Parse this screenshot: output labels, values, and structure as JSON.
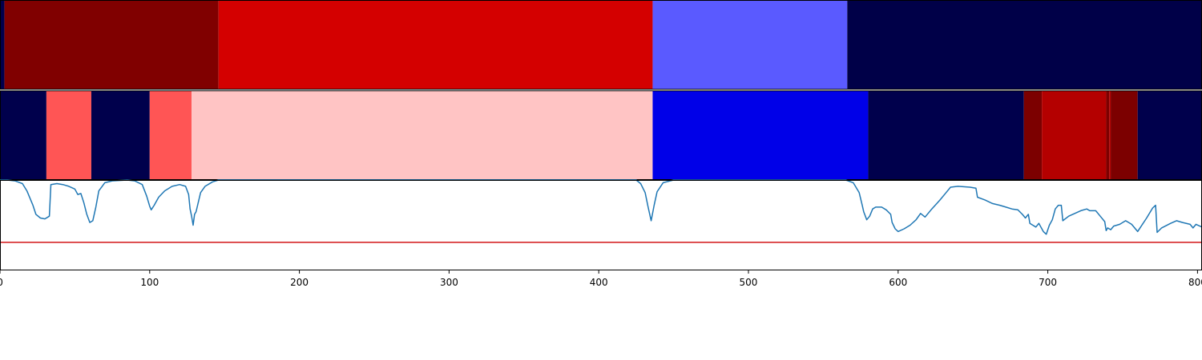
{
  "chart_data": [
    {
      "type": "heatmap",
      "panel": "top-segments",
      "x_range": [
        0,
        803
      ],
      "segments": [
        {
          "start": 0,
          "end": 3,
          "color": "#00004c"
        },
        {
          "start": 3,
          "end": 146,
          "color": "#800000"
        },
        {
          "start": 146,
          "end": 436,
          "color": "#d40000"
        },
        {
          "start": 436,
          "end": 566,
          "color": "#5a5aff"
        },
        {
          "start": 566,
          "end": 803,
          "color": "#000048"
        }
      ]
    },
    {
      "type": "heatmap",
      "panel": "middle-segments",
      "x_range": [
        0,
        803
      ],
      "segments": [
        {
          "start": 0,
          "end": 31,
          "color": "#00004c"
        },
        {
          "start": 31,
          "end": 61,
          "color": "#ff5555"
        },
        {
          "start": 61,
          "end": 100,
          "color": "#00004c"
        },
        {
          "start": 100,
          "end": 128,
          "color": "#ff5555"
        },
        {
          "start": 128,
          "end": 436,
          "color": "#ffc4c4"
        },
        {
          "start": 436,
          "end": 580,
          "color": "#0000e8"
        },
        {
          "start": 580,
          "end": 684,
          "color": "#00004c"
        },
        {
          "start": 684,
          "end": 696,
          "color": "#7c0000"
        },
        {
          "start": 696,
          "end": 739,
          "color": "#b40000"
        },
        {
          "start": 739,
          "end": 741,
          "color": "#7c0000"
        },
        {
          "start": 741,
          "end": 742,
          "color": "#b40000"
        },
        {
          "start": 742,
          "end": 760,
          "color": "#7c0000"
        },
        {
          "start": 760,
          "end": 803,
          "color": "#00004c"
        }
      ]
    },
    {
      "type": "line",
      "panel": "bottom-line",
      "xlim": [
        0,
        803
      ],
      "ylim": [
        0,
        1
      ],
      "x_ticks": [
        0,
        100,
        200,
        300,
        400,
        500,
        600,
        700,
        800
      ],
      "tick_labels": [
        "0",
        "100",
        "200",
        "300",
        "400",
        "500",
        "600",
        "700",
        "800"
      ],
      "threshold": {
        "value": 0.31,
        "color": "#d62728"
      },
      "series": [
        {
          "color": "#1f77b4",
          "points": [
            [
              0,
              1.0
            ],
            [
              5,
              1.0
            ],
            [
              10,
              0.99
            ],
            [
              15,
              0.96
            ],
            [
              18,
              0.88
            ],
            [
              22,
              0.72
            ],
            [
              24,
              0.62
            ],
            [
              27,
              0.58
            ],
            [
              30,
              0.57
            ],
            [
              33,
              0.6
            ],
            [
              34,
              0.95
            ],
            [
              38,
              0.96
            ],
            [
              42,
              0.95
            ],
            [
              46,
              0.93
            ],
            [
              50,
              0.9
            ],
            [
              52,
              0.84
            ],
            [
              54,
              0.85
            ],
            [
              56,
              0.75
            ],
            [
              58,
              0.62
            ],
            [
              60,
              0.53
            ],
            [
              62,
              0.55
            ],
            [
              64,
              0.7
            ],
            [
              66,
              0.88
            ],
            [
              70,
              0.97
            ],
            [
              75,
              0.99
            ],
            [
              85,
              1.0
            ],
            [
              90,
              0.99
            ],
            [
              95,
              0.95
            ],
            [
              98,
              0.82
            ],
            [
              100,
              0.71
            ],
            [
              101,
              0.67
            ],
            [
              103,
              0.72
            ],
            [
              106,
              0.81
            ],
            [
              110,
              0.88
            ],
            [
              115,
              0.93
            ],
            [
              120,
              0.95
            ],
            [
              124,
              0.93
            ],
            [
              126,
              0.84
            ],
            [
              127,
              0.68
            ],
            [
              128,
              0.6
            ],
            [
              129,
              0.5
            ],
            [
              130,
              0.62
            ],
            [
              131,
              0.65
            ],
            [
              134,
              0.86
            ],
            [
              137,
              0.93
            ],
            [
              142,
              0.98
            ],
            [
              146,
              1.0
            ],
            [
              425,
              1.0
            ],
            [
              428,
              0.96
            ],
            [
              431,
              0.86
            ],
            [
              433,
              0.7
            ],
            [
              435,
              0.55
            ],
            [
              437,
              0.72
            ],
            [
              439,
              0.87
            ],
            [
              443,
              0.97
            ],
            [
              450,
              1.0
            ],
            [
              565,
              1.0
            ],
            [
              570,
              0.97
            ],
            [
              574,
              0.86
            ],
            [
              576,
              0.72
            ],
            [
              577,
              0.65
            ],
            [
              579,
              0.56
            ],
            [
              581,
              0.6
            ],
            [
              583,
              0.68
            ],
            [
              585,
              0.7
            ],
            [
              589,
              0.7
            ],
            [
              592,
              0.67
            ],
            [
              595,
              0.62
            ],
            [
              596,
              0.53
            ],
            [
              598,
              0.46
            ],
            [
              600,
              0.43
            ],
            [
              604,
              0.46
            ],
            [
              608,
              0.5
            ],
            [
              612,
              0.56
            ],
            [
              615,
              0.63
            ],
            [
              618,
              0.59
            ],
            [
              622,
              0.67
            ],
            [
              628,
              0.78
            ],
            [
              632,
              0.86
            ],
            [
              635,
              0.92
            ],
            [
              640,
              0.93
            ],
            [
              648,
              0.92
            ],
            [
              652,
              0.91
            ],
            [
              653,
              0.81
            ],
            [
              658,
              0.78
            ],
            [
              663,
              0.74
            ],
            [
              668,
              0.72
            ],
            [
              672,
              0.7
            ],
            [
              676,
              0.68
            ],
            [
              680,
              0.67
            ],
            [
              683,
              0.62
            ],
            [
              685,
              0.58
            ],
            [
              687,
              0.62
            ],
            [
              688,
              0.52
            ],
            [
              690,
              0.5
            ],
            [
              692,
              0.48
            ],
            [
              694,
              0.52
            ],
            [
              697,
              0.43
            ],
            [
              699,
              0.4
            ],
            [
              701,
              0.5
            ],
            [
              703,
              0.56
            ],
            [
              705,
              0.68
            ],
            [
              707,
              0.72
            ],
            [
              709,
              0.72
            ],
            [
              710,
              0.55
            ],
            [
              714,
              0.6
            ],
            [
              718,
              0.63
            ],
            [
              722,
              0.66
            ],
            [
              726,
              0.68
            ],
            [
              728,
              0.66
            ],
            [
              732,
              0.66
            ],
            [
              735,
              0.6
            ],
            [
              738,
              0.54
            ],
            [
              739,
              0.44
            ],
            [
              740,
              0.47
            ],
            [
              742,
              0.45
            ],
            [
              744,
              0.49
            ],
            [
              748,
              0.51
            ],
            [
              752,
              0.55
            ],
            [
              756,
              0.51
            ],
            [
              760,
              0.43
            ],
            [
              762,
              0.48
            ],
            [
              766,
              0.58
            ],
            [
              770,
              0.69
            ],
            [
              772,
              0.72
            ],
            [
              773,
              0.42
            ],
            [
              776,
              0.47
            ],
            [
              782,
              0.52
            ],
            [
              786,
              0.55
            ],
            [
              790,
              0.53
            ],
            [
              795,
              0.51
            ],
            [
              797,
              0.47
            ],
            [
              799,
              0.51
            ],
            [
              803,
              0.48
            ]
          ]
        }
      ]
    }
  ]
}
